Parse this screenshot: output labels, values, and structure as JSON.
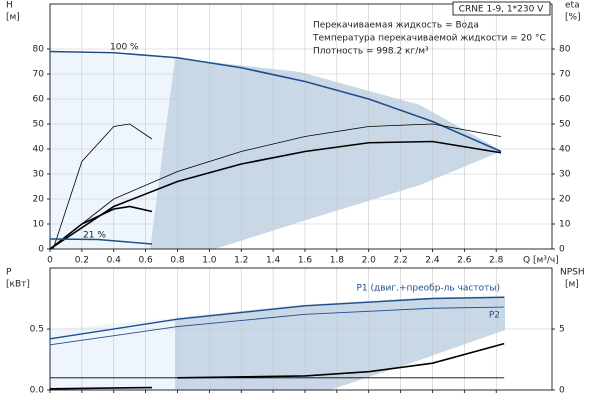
{
  "info_box": {
    "title": "CRNE 1-9, 1*230 V",
    "lines": [
      "Перекачиваемая жидкость = Вода",
      "Температура перекачиваемой жидкости = 20 °C",
      "Плотность = 998.2 кг/м³"
    ]
  },
  "chart_data": [
    {
      "type": "line",
      "y_label": [
        "H",
        "[м]"
      ],
      "y2_label": [
        "eta",
        "[%]"
      ],
      "x_label": "Q [м³/ч]",
      "annotations": [
        "100 %",
        "21 %"
      ],
      "xlim": [
        0,
        3.15
      ],
      "ylim": [
        0,
        98
      ],
      "y2lim": [
        0,
        98
      ],
      "xticks": [
        0,
        0.2,
        0.4,
        0.6,
        0.8,
        {
          "value": 1,
          "label": "1.0"
        },
        1.2,
        1.4,
        1.6,
        1.8,
        {
          "value": 2,
          "label": "2.0"
        },
        2.2,
        2.4,
        2.6,
        2.8
      ],
      "yticks": [
        0,
        10,
        20,
        30,
        40,
        50,
        60,
        70,
        80
      ],
      "y2ticks": [
        0,
        10,
        20,
        30,
        40,
        50,
        60,
        70,
        80
      ],
      "grid": true,
      "series": [
        {
          "color": "#1f4e8c",
          "line_width": 1.6,
          "x": [
            0,
            0.4,
            0.8,
            1.2,
            1.6,
            2.0,
            2.4,
            2.83
          ],
          "values": [
            79,
            78.5,
            76.5,
            72.5,
            67,
            60,
            51,
            39
          ]
        },
        {
          "color": "#000000",
          "line_width": 0.8,
          "axis": "y2",
          "x": [
            0,
            0.4,
            0.8,
            1.2,
            1.6,
            2.0,
            2.4,
            2.83
          ],
          "values": [
            0,
            20,
            31,
            39,
            45,
            49,
            50,
            45
          ]
        },
        {
          "color": "#000000",
          "line_width": 1.6,
          "x": [
            0,
            0.4,
            0.8,
            1.2,
            1.6,
            2.0,
            2.4,
            2.83
          ],
          "values": [
            0,
            17,
            27,
            34,
            39,
            42.5,
            43,
            38.5
          ]
        },
        {
          "color": "#000000",
          "line_width": 0.8,
          "axis": "y2",
          "x": [
            0.02,
            0.2,
            0.4,
            0.5,
            0.64
          ],
          "values": [
            0,
            35,
            49,
            50,
            44
          ]
        },
        {
          "color": "#000000",
          "line_width": 1.6,
          "x": [
            0,
            0.2,
            0.4,
            0.5,
            0.64
          ],
          "values": [
            0,
            10,
            16,
            17,
            15
          ]
        },
        {
          "color": "#1f4e8c",
          "line_width": 1.4,
          "x": [
            0,
            0.3,
            0.64
          ],
          "values": [
            4,
            3.8,
            2
          ]
        }
      ]
    },
    {
      "type": "line",
      "y_label": [
        "P",
        "[кВт]"
      ],
      "y2_label": [
        "NPSH",
        "[м]"
      ],
      "xlim": [
        0,
        3.15
      ],
      "ylim": [
        0,
        1
      ],
      "y2lim": [
        0,
        10
      ],
      "xticks": [
        0,
        0.2,
        0.4,
        0.6,
        0.8,
        1,
        1.2,
        1.4,
        1.6,
        1.8,
        2,
        2.2,
        2.4,
        2.6,
        2.8
      ],
      "yticks": [
        {
          "value": 0,
          "label": "0.0"
        },
        0.5
      ],
      "y2ticks": [
        0,
        5
      ],
      "grid": true,
      "series": [
        {
          "name": "P1 (двиг.+преобр-ль частоты)",
          "color": "#1f4e8c",
          "line_width": 1.4,
          "x": [
            0,
            0.8,
            1.6,
            2.4,
            2.85
          ],
          "values": [
            0.42,
            0.58,
            0.69,
            0.75,
            0.76
          ]
        },
        {
          "name": "P2",
          "color": "#1f4e8c",
          "line_width": 0.9,
          "x": [
            0,
            0.8,
            1.6,
            2.4,
            2.85
          ],
          "values": [
            0.37,
            0.52,
            0.62,
            0.67,
            0.68
          ]
        },
        {
          "color": "#000000",
          "line_width": 1.6,
          "axis": "y2",
          "x": [
            0.8,
            1.6,
            2.0,
            2.4,
            2.85
          ],
          "values": [
            1,
            1.15,
            1.5,
            2.2,
            3.8
          ]
        },
        {
          "color": "#000000",
          "line_width": 0.8,
          "x": [
            0,
            2.85
          ],
          "values": [
            0.1,
            0.1
          ]
        },
        {
          "color": "#000000",
          "line_width": 1.6,
          "x": [
            0,
            0.64
          ],
          "values": [
            0.01,
            0.02
          ]
        }
      ]
    }
  ]
}
